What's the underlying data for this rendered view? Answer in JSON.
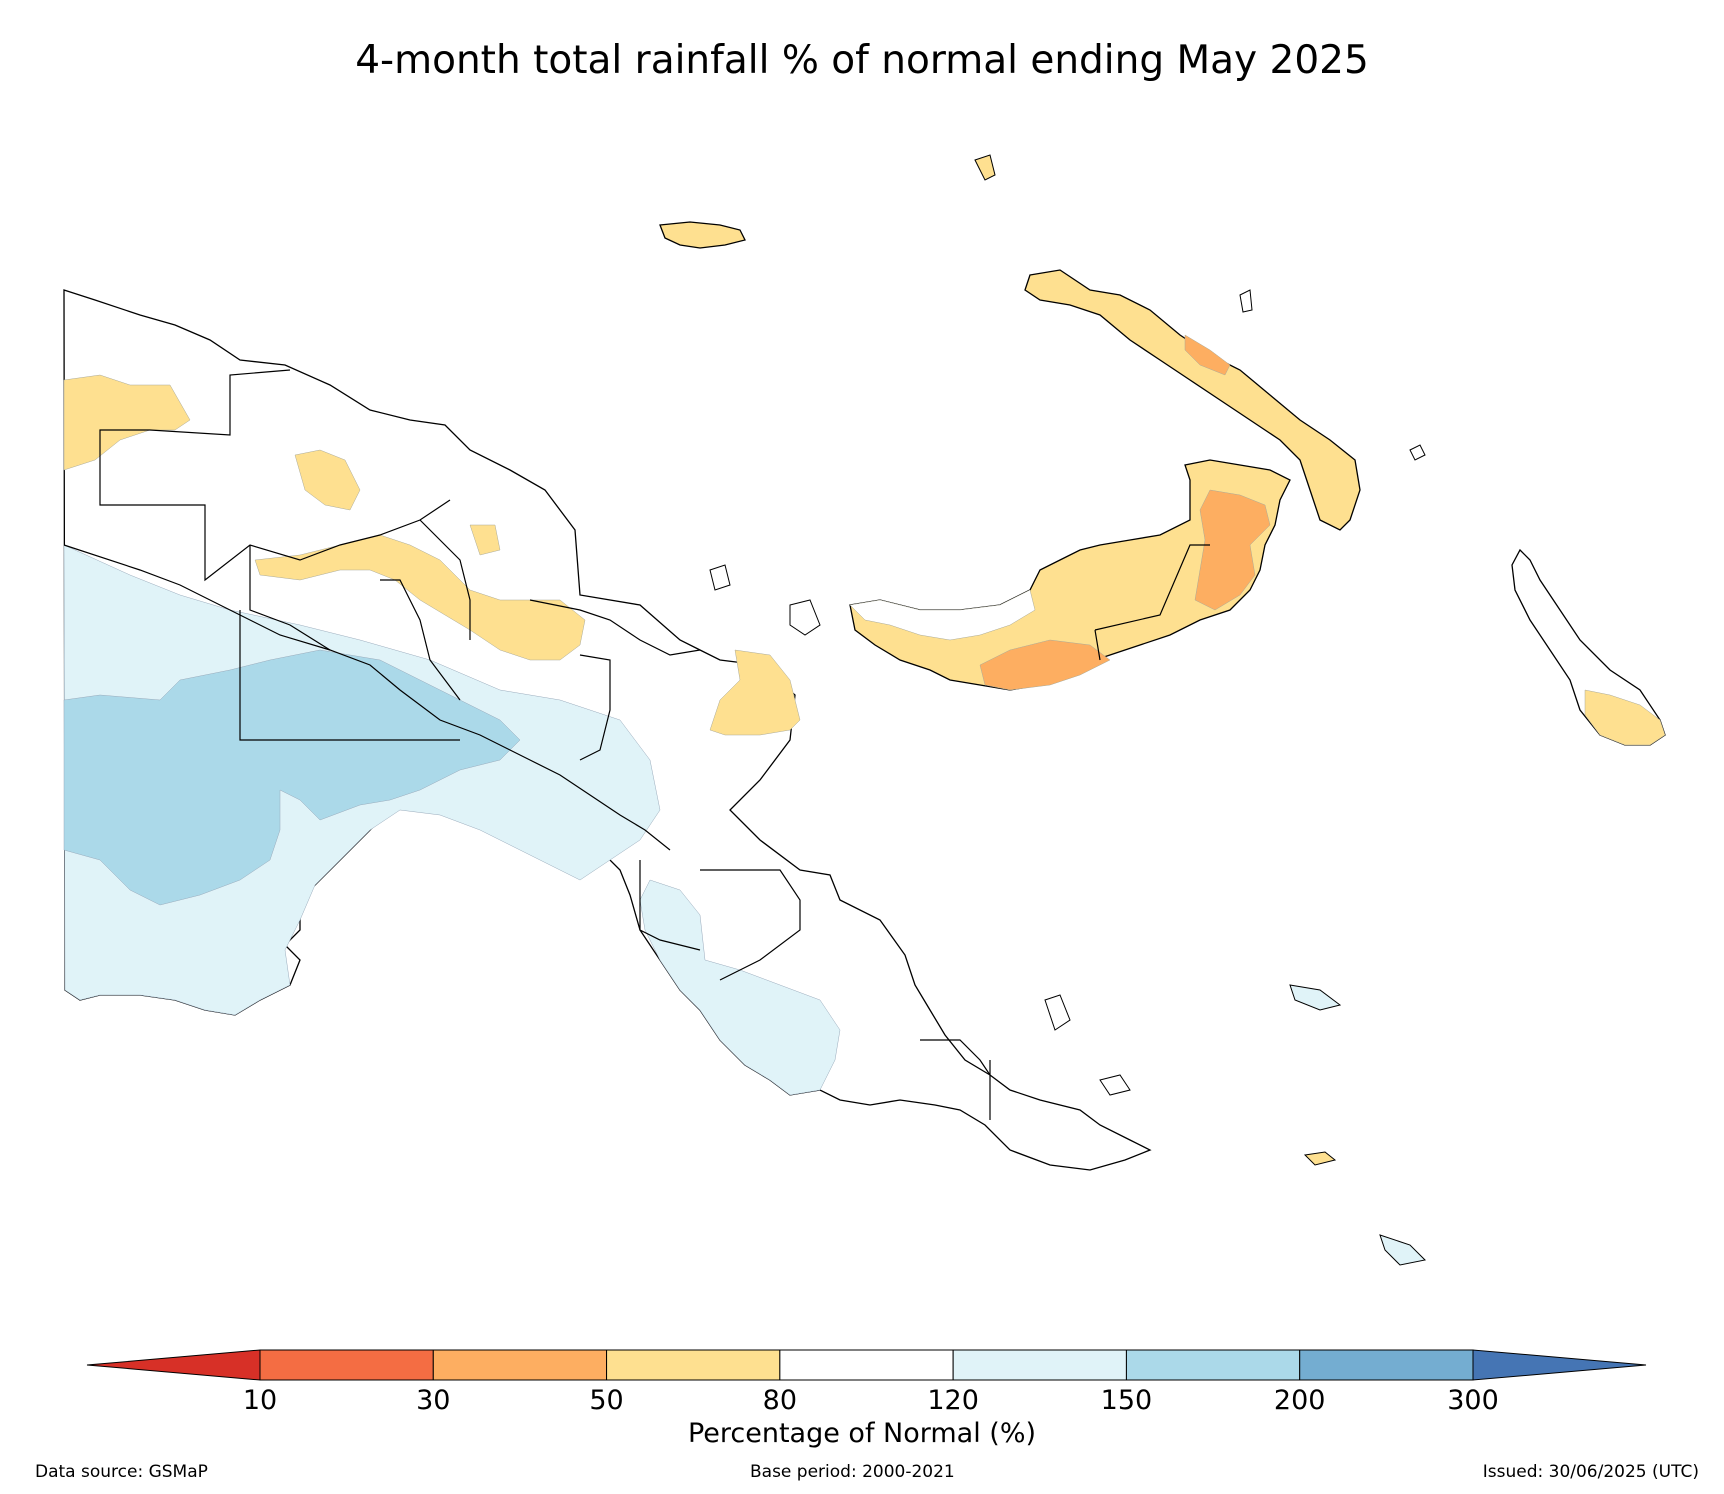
{
  "title": "4-month total rainfall % of normal ending May 2025",
  "legend": {
    "title": "Percentage of Normal (%)",
    "ticks": [
      "10",
      "30",
      "50",
      "80",
      "120",
      "150",
      "200",
      "300"
    ],
    "classes": [
      {
        "range": "<10",
        "color": "#d73027"
      },
      {
        "range": "10-30",
        "color": "#f46d43"
      },
      {
        "range": "30-50",
        "color": "#fdae61"
      },
      {
        "range": "50-80",
        "color": "#fee090"
      },
      {
        "range": "80-120",
        "color": "#ffffff"
      },
      {
        "range": "120-150",
        "color": "#e0f3f8"
      },
      {
        "range": "150-200",
        "color": "#abd9e9"
      },
      {
        "range": "200-300",
        "color": "#74add1"
      },
      {
        "range": ">300",
        "color": "#4575b4"
      }
    ]
  },
  "footer": {
    "source": "Data source: GSMaP",
    "base_period": "Base period: 2000-2021",
    "issued": "Issued: 30/06/2025 (UTC)"
  }
}
